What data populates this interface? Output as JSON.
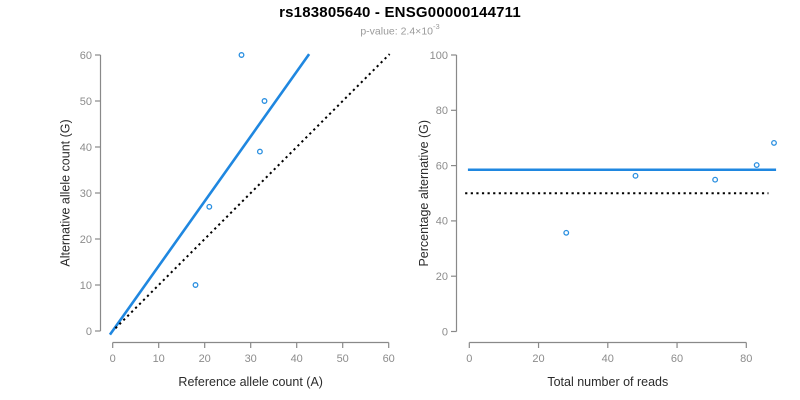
{
  "header": {
    "title": "rs183805640 - ENSG00000144711",
    "p_value_label": "p-value: 2.4×10",
    "p_value_exponent": "-3"
  },
  "colors": {
    "accent_blue": "#1f87e0",
    "point_blue": "#2a8fe0",
    "identity_black": "#000000",
    "axis_gray": "#898989",
    "tick_label_gray": "#8c8c8c",
    "axis_title_dark": "#2b2b2b",
    "title_black": "#000000",
    "subtitle_gray": "#9a9a9a",
    "background": "#ffffff"
  },
  "chart_data": [
    {
      "type": "scatter",
      "panel": "left",
      "name": "allele-counts-scatter",
      "xlabel": "Reference allele count (A)",
      "ylabel": "Alternative allele count (G)",
      "xlim": [
        0,
        60
      ],
      "ylim": [
        0,
        60
      ],
      "xticks": [
        0,
        10,
        20,
        30,
        40,
        50,
        60
      ],
      "yticks": [
        0,
        10,
        20,
        30,
        40,
        50,
        60
      ],
      "grid": false,
      "points": [
        [
          28,
          60
        ],
        [
          33,
          50
        ],
        [
          32,
          39
        ],
        [
          21,
          27
        ],
        [
          18,
          10
        ]
      ],
      "lines": [
        {
          "name": "fit-line",
          "role": "regression-through-origin",
          "style": "solid",
          "color": "#1f87e0",
          "x1": -0.6,
          "y1": -0.8,
          "x2": 42.7,
          "y2": 60.2
        },
        {
          "name": "identity-line",
          "role": "y-equals-x",
          "style": "dotted",
          "color": "#000000",
          "x1": 0.6,
          "y1": 0.6,
          "x2": 60.2,
          "y2": 60.2
        }
      ]
    },
    {
      "type": "scatter",
      "panel": "right",
      "name": "percentage-alternative-scatter",
      "xlabel": "Total number of reads",
      "ylabel": "Percentage alternative (G)",
      "xlim": [
        0,
        88.6
      ],
      "ylim": [
        0,
        100
      ],
      "xticks": [
        0,
        20,
        40,
        60,
        80
      ],
      "yticks": [
        0,
        20,
        40,
        60,
        80,
        100
      ],
      "grid": false,
      "points": [
        [
          28,
          35.7
        ],
        [
          48,
          56.3
        ],
        [
          71,
          54.9
        ],
        [
          83,
          60.2
        ],
        [
          88,
          68.2
        ]
      ],
      "lines": [
        {
          "name": "mean-percentage-line",
          "role": "overall-alternative-fraction",
          "style": "solid",
          "color": "#1f87e0",
          "x1": -0.4,
          "y1": 58.5,
          "x2": 88.6,
          "y2": 58.5
        },
        {
          "name": "fifty-percent-line",
          "role": "50-percent-reference",
          "style": "dotted",
          "color": "#000000",
          "x1": -1.2,
          "y1": 50,
          "x2": 86.4,
          "y2": 50
        }
      ]
    }
  ]
}
